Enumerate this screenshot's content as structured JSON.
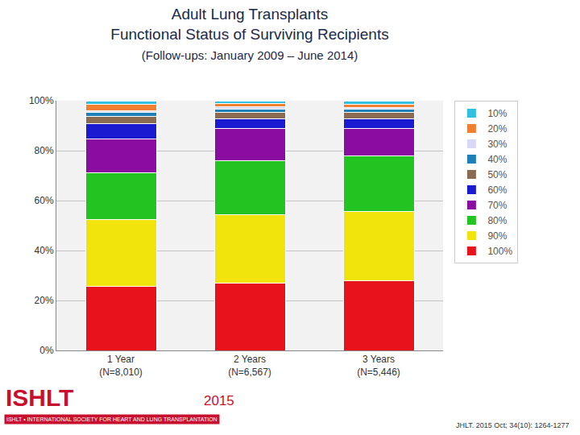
{
  "chart_data": {
    "type": "bar",
    "title": "Adult Lung Transplants",
    "subtitle": [
      "Functional Status of Surviving Recipients",
      "(Follow-ups: January 2009 – June 2014)"
    ],
    "categories": [
      "1 Year\n(N=8,010)",
      "2 Years\n(N=6,567)",
      "3 Years\n(N=5,446)"
    ],
    "stacked": true,
    "grid": true,
    "legend": "right",
    "ylim": [
      0,
      100
    ],
    "yticks": [
      {
        "value": 0,
        "label": "0%"
      },
      {
        "value": 20,
        "label": "20%"
      },
      {
        "value": 40,
        "label": "40%"
      },
      {
        "value": 60,
        "label": "60%"
      },
      {
        "value": 80,
        "label": "80%"
      },
      {
        "value": 100,
        "label": "100%"
      }
    ],
    "series": [
      {
        "name": "100%",
        "color": "#e8121a",
        "values": [
          25.6,
          26.9,
          27.9
        ]
      },
      {
        "name": "90%",
        "color": "#f0e40c",
        "values": [
          26.7,
          27.3,
          27.9
        ]
      },
      {
        "name": "80%",
        "color": "#22c422",
        "values": [
          18.8,
          21.8,
          22.1
        ]
      },
      {
        "name": "70%",
        "color": "#8a0ca0",
        "values": [
          13.6,
          13.0,
          11.1
        ]
      },
      {
        "name": "60%",
        "color": "#1a1ad0",
        "values": [
          6.0,
          3.9,
          3.6
        ]
      },
      {
        "name": "50%",
        "color": "#8a6a50",
        "values": [
          3.0,
          2.5,
          2.8
        ]
      },
      {
        "name": "40%",
        "color": "#1f7fb8",
        "values": [
          1.6,
          1.3,
          1.2
        ]
      },
      {
        "name": "30%",
        "color": "#d8d8f6",
        "values": [
          0.8,
          0.8,
          0.8
        ]
      },
      {
        "name": "20%",
        "color": "#f08030",
        "values": [
          2.5,
          1.3,
          1.3
        ]
      },
      {
        "name": "10%",
        "color": "#30c0e0",
        "values": [
          1.4,
          1.2,
          1.3
        ]
      }
    ],
    "annotations": [
      "ISHLT",
      "ISHLT • INTERNATIONAL SOCIETY FOR HEART AND LUNG TRANSPLANTATION",
      "2015",
      "JHLT. 2015 Oct; 34(10): 1264-1277"
    ]
  }
}
